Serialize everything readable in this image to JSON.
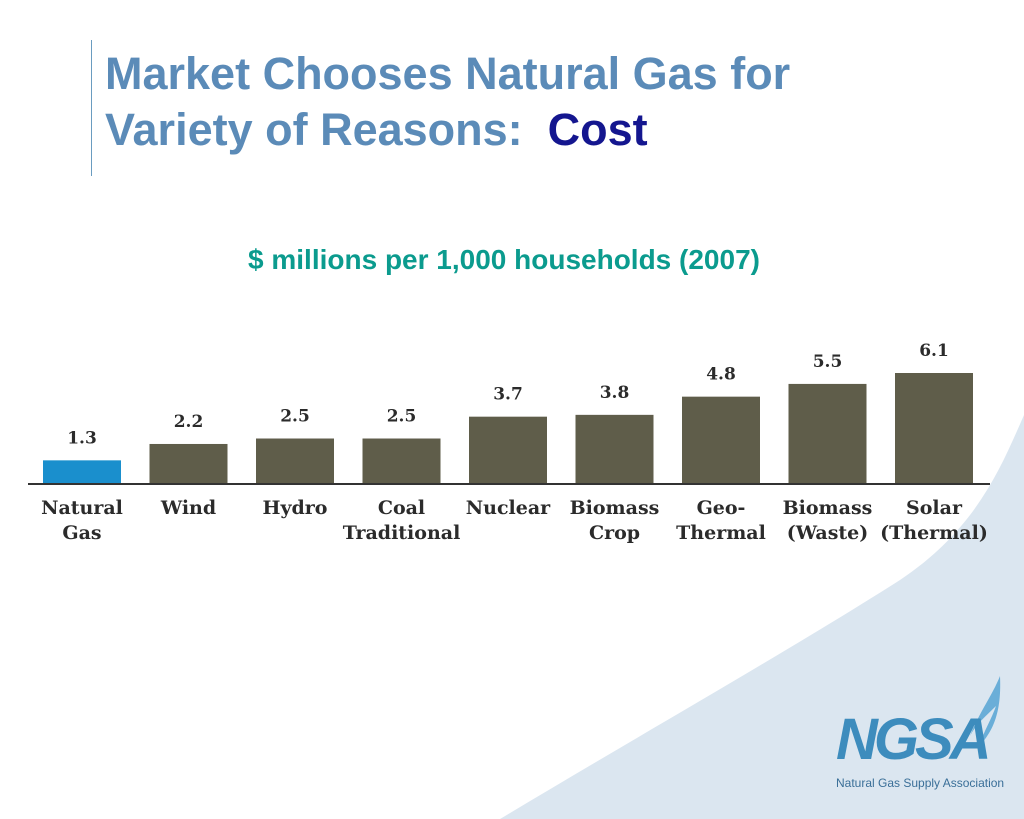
{
  "title": {
    "line1": "Market Chooses Natural Gas for",
    "line2": "Variety of Reasons:",
    "accent": "Cost"
  },
  "subtitle": "$ millions per 1,000 households (2007)",
  "chart_data": {
    "type": "bar",
    "categories": [
      [
        "Natural",
        "Gas"
      ],
      [
        "Wind"
      ],
      [
        "Hydro"
      ],
      [
        "Coal",
        "Traditional"
      ],
      [
        "Nuclear"
      ],
      [
        "Biomass",
        "Crop"
      ],
      [
        "Geo-",
        "Thermal"
      ],
      [
        "Biomass",
        "(Waste)"
      ],
      [
        "Solar",
        "(Thermal)"
      ]
    ],
    "values": [
      1.3,
      2.2,
      2.5,
      2.5,
      3.7,
      3.8,
      4.8,
      5.5,
      6.1
    ],
    "labels": [
      "1.3",
      "2.2",
      "2.5",
      "2.5",
      "3.7",
      "3.8",
      "4.8",
      "5.5",
      "6.1"
    ],
    "highlight_index": 0,
    "colors": {
      "highlight": "#1a8fcd",
      "default": "#5f5d4a",
      "axis": "#333333"
    },
    "ylim": [
      0,
      6.1
    ],
    "grid": false
  },
  "logo": {
    "wordmark": "NGSA",
    "caption": "Natural Gas Supply Association"
  },
  "theme": {
    "swoosh": "#dbe6f0"
  }
}
